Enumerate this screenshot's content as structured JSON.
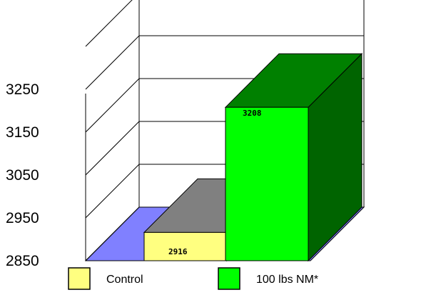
{
  "chart_data": {
    "type": "bar",
    "style": "3d",
    "categories": [
      "Control",
      "100 lbs NM*"
    ],
    "values": [
      2916,
      3208
    ],
    "data_labels": [
      "2916",
      "3208"
    ],
    "yticks": [
      "2850",
      "2950",
      "3050",
      "3150",
      "3250"
    ],
    "ylim": [
      2850,
      3350
    ],
    "grid": true,
    "legend_position": "bottom",
    "legend": [
      {
        "label": "Control",
        "color": "#ffff80"
      },
      {
        "label": "100 lbs NM*",
        "color": "#00ff00"
      }
    ],
    "colors": {
      "floor": "#8080ff",
      "control_front": "#ffff80",
      "control_top": "#808080",
      "nm_front": "#00ff00",
      "nm_top": "#008000",
      "nm_side": "#006400"
    }
  }
}
